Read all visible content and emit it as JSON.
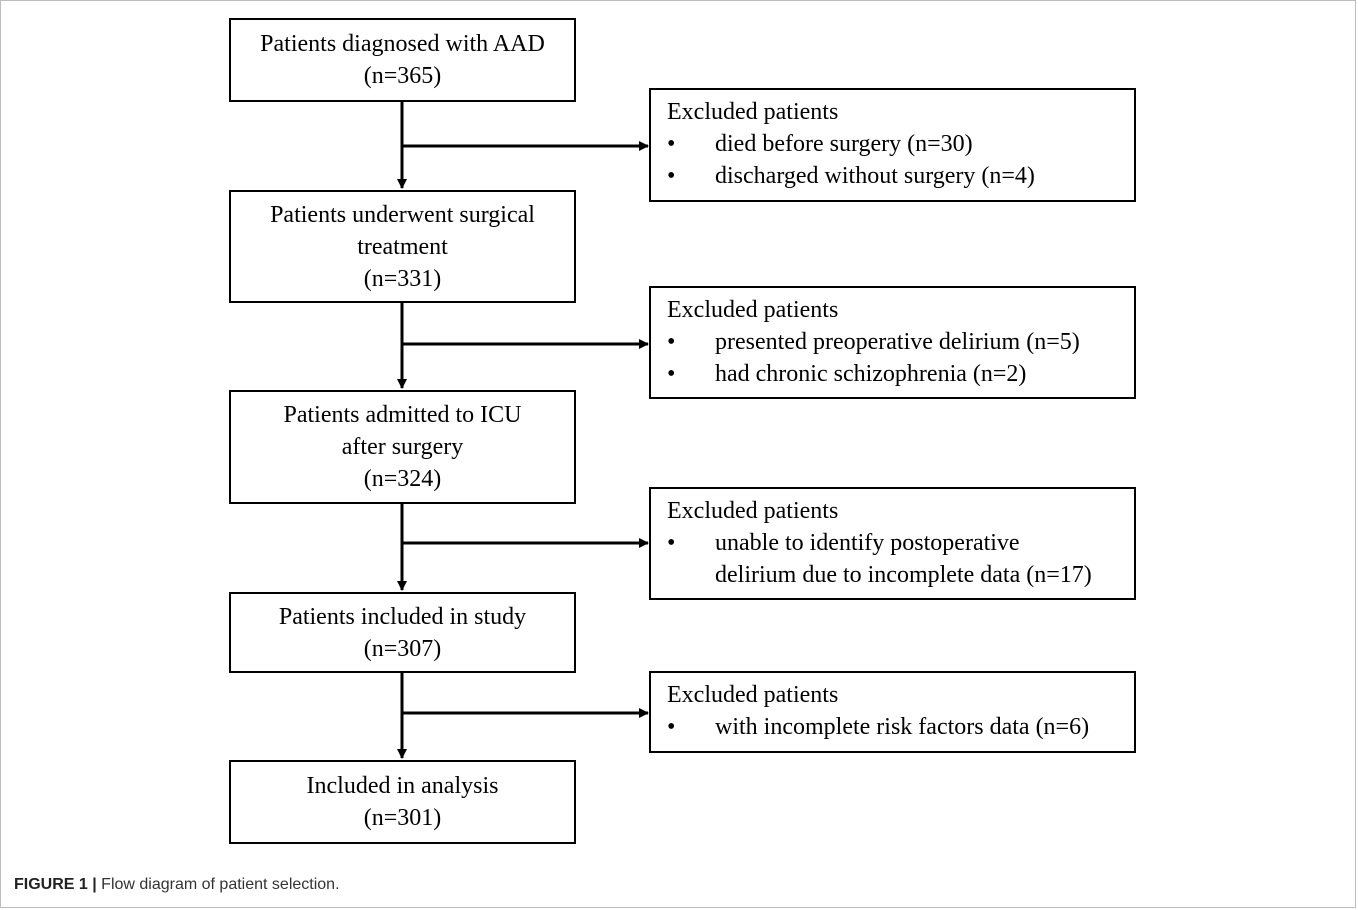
{
  "main_boxes": [
    {
      "lines": [
        "Patients diagnosed with AAD",
        "(n=365)"
      ]
    },
    {
      "lines": [
        "Patients underwent surgical",
        "treatment",
        "(n=331)"
      ]
    },
    {
      "lines": [
        "Patients admitted to ICU",
        "after surgery",
        "(n=324)"
      ]
    },
    {
      "lines": [
        "Patients included in study",
        "(n=307)"
      ]
    },
    {
      "lines": [
        "Included in analysis",
        "(n=301)"
      ]
    }
  ],
  "exclusion_boxes": [
    {
      "title": "Excluded patients",
      "items": [
        {
          "bullet": "•",
          "lines": [
            "died before surgery (n=30)"
          ]
        },
        {
          "bullet": "•",
          "lines": [
            "discharged without surgery (n=4)"
          ]
        }
      ]
    },
    {
      "title": "Excluded patients",
      "items": [
        {
          "bullet": "•",
          "lines": [
            "presented preoperative delirium (n=5)"
          ]
        },
        {
          "bullet": "•",
          "lines": [
            "had chronic schizophrenia (n=2)"
          ]
        }
      ]
    },
    {
      "title": "Excluded patients",
      "items": [
        {
          "bullet": "•",
          "lines": [
            "unable to identify postoperative",
            "delirium due to incomplete data (n=17)"
          ]
        }
      ]
    },
    {
      "title": "Excluded patients",
      "items": [
        {
          "bullet": "•",
          "lines": [
            "with incomplete risk factors data (n=6)"
          ]
        }
      ]
    }
  ],
  "caption": {
    "label": "FIGURE 1 |",
    "text": " Flow diagram of patient selection."
  }
}
